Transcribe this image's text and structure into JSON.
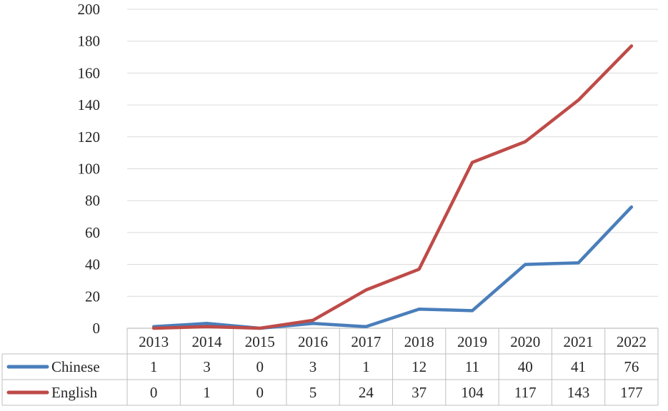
{
  "chart_data": {
    "type": "line",
    "categories": [
      "2013",
      "2014",
      "2015",
      "2016",
      "2017",
      "2018",
      "2019",
      "2020",
      "2021",
      "2022"
    ],
    "series": [
      {
        "name": "Chinese",
        "color": "#4a7ebb",
        "values": [
          1,
          3,
          0,
          3,
          1,
          12,
          11,
          40,
          41,
          76
        ]
      },
      {
        "name": "English",
        "color": "#be4b48",
        "values": [
          0,
          1,
          0,
          5,
          24,
          37,
          104,
          117,
          143,
          177
        ]
      }
    ],
    "ylim": [
      0,
      200
    ],
    "yticks": [
      "0",
      "20",
      "40",
      "60",
      "80",
      "100",
      "120",
      "140",
      "160",
      "180",
      "200"
    ],
    "grid": true,
    "legend": "data-table",
    "data_table": true
  }
}
